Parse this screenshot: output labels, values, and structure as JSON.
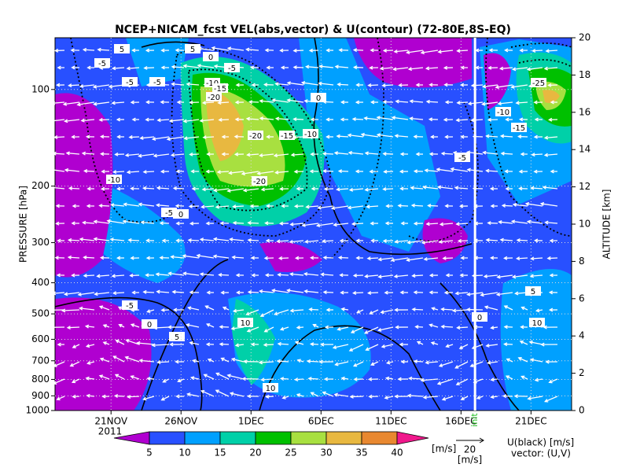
{
  "chart_data": {
    "type": "contour",
    "title": "NCEP+NICAM_fcst VEL(abs,vector) & U(contour)   (72-80E,8S-EQ)",
    "ylabel": "PRESSURE [hPa]",
    "y2label": "ALTITUDE [km]",
    "ylog": true,
    "ylim": [
      1000,
      69
    ],
    "yticks": [
      100,
      200,
      300,
      400,
      500,
      600,
      700,
      800,
      900,
      1000
    ],
    "y2lim": [
      0,
      20
    ],
    "y2ticks": [
      0,
      2,
      4,
      6,
      8,
      10,
      12,
      14,
      16,
      18,
      20
    ],
    "xlim": [
      17,
      53.9
    ],
    "xticks": [
      {
        "value": 21,
        "label": "21NOV"
      },
      {
        "value": 26,
        "label": "26NOV"
      },
      {
        "value": 31,
        "label": "1DEC"
      },
      {
        "value": 36,
        "label": "6DEC"
      },
      {
        "value": 41,
        "label": "11DEC"
      },
      {
        "value": 46,
        "label": "16DEC"
      },
      {
        "value": 51,
        "label": "21DEC"
      }
    ],
    "year": "2011",
    "init": {
      "value": 47,
      "label": "init"
    },
    "grid": true,
    "colorbar": {
      "levels": [
        5,
        10,
        15,
        20,
        25,
        30,
        35,
        40
      ],
      "colors": [
        "#b000d0",
        "#2850ff",
        "#00a0ff",
        "#00d0a8",
        "#00c000",
        "#a8e040",
        "#e8b840",
        "#e88830",
        "#f0188c"
      ],
      "unit": "[m/s]"
    },
    "vector_reference": {
      "value": 20,
      "unit": "[m/s]"
    },
    "contour_legend": "U(black) [m/s]",
    "vector_legend": "vector: (U,V)",
    "contour_labels": [
      5,
      5,
      0,
      -5,
      -5,
      -10,
      -15,
      -20,
      -20,
      -15,
      -10,
      -10,
      -5,
      0,
      -5,
      -5,
      0,
      10,
      10,
      5,
      0,
      -5,
      -20,
      -25,
      -15,
      -10,
      -5,
      10,
      5,
      0
    ]
  }
}
